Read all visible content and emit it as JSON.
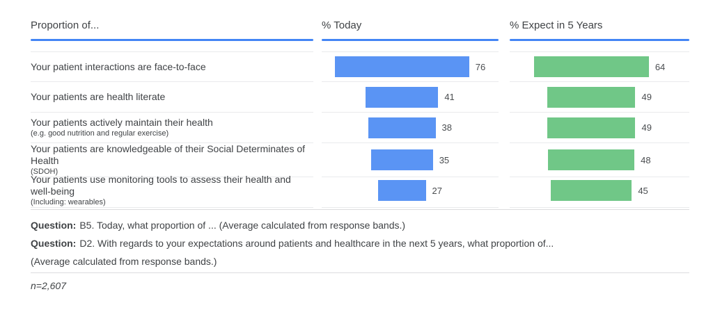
{
  "headers": {
    "label": "Proportion of...",
    "today": "% Today",
    "expect": "% Expect in 5 Years"
  },
  "colors": {
    "bar_blue": "#5a94f4",
    "bar_green": "#70c787",
    "header_line": "#4385f5"
  },
  "rows": [
    {
      "label": "Your patient interactions are face-to-face",
      "sublabel": "",
      "today": 76,
      "expect": 64
    },
    {
      "label": "Your patients are health literate",
      "sublabel": "",
      "today": 41,
      "expect": 49
    },
    {
      "label": "Your patients actively maintain their health",
      "sublabel": "(e.g. good nutrition and regular exercise)",
      "today": 38,
      "expect": 49
    },
    {
      "label": "Your patients are knowledgeable of their Social Determinates of Health",
      "sublabel": "(SDOH)",
      "today": 35,
      "expect": 48
    },
    {
      "label": "Your patients use monitoring tools to assess their health and well-being",
      "sublabel": "(Including: wearables)",
      "today": 27,
      "expect": 45
    }
  ],
  "chart_data": {
    "type": "bar",
    "orientation": "horizontal",
    "title": "Proportion of...",
    "categories": [
      "Your patient interactions are face-to-face",
      "Your patients are health literate",
      "Your patients actively maintain their health (e.g. good nutrition and regular exercise)",
      "Your patients are knowledgeable of their Social Determinates of Health (SDOH)",
      "Your patients use monitoring tools to assess their health and well-being (Including: wearables)"
    ],
    "series": [
      {
        "name": "% Today",
        "color": "#5a94f4",
        "values": [
          76,
          41,
          38,
          35,
          27
        ]
      },
      {
        "name": "% Expect in 5 Years",
        "color": "#70c787",
        "values": [
          64,
          49,
          49,
          48,
          45
        ]
      }
    ],
    "xlim": [
      0,
      100
    ],
    "grid": false,
    "value_labels": "outside-end"
  },
  "footnotes": {
    "question_label": "Question:",
    "q1_text": "B5. Today, what proportion of ... (Average calculated from response bands.)",
    "q2_text": "D2. With regards to your expectations around patients and healthcare in the next 5 years, what proportion of...",
    "q2_cont": "(Average calculated from response bands.)",
    "sample_size": "n=2,607"
  }
}
